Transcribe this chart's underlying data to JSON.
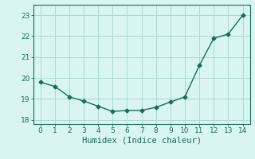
{
  "x": [
    0,
    1,
    2,
    3,
    4,
    5,
    6,
    7,
    8,
    9,
    10,
    11,
    12,
    13,
    14
  ],
  "y": [
    19.8,
    19.6,
    19.1,
    18.9,
    18.65,
    18.4,
    18.45,
    18.45,
    18.6,
    18.85,
    19.1,
    20.6,
    21.9,
    22.1,
    23.0
  ],
  "line_color": "#1a6b5a",
  "marker": "D",
  "marker_size": 2.5,
  "bg_color": "#d8f5f0",
  "grid_color": "#aed8d0",
  "xlabel": "Humidex (Indice chaleur)",
  "xlim": [
    -0.5,
    14.5
  ],
  "ylim": [
    17.8,
    23.5
  ],
  "yticks": [
    18,
    19,
    20,
    21,
    22,
    23
  ],
  "xticks": [
    0,
    1,
    2,
    3,
    4,
    5,
    6,
    7,
    8,
    9,
    10,
    11,
    12,
    13,
    14
  ],
  "xlabel_fontsize": 7.5,
  "tick_fontsize": 6.5,
  "line_width": 1.0
}
